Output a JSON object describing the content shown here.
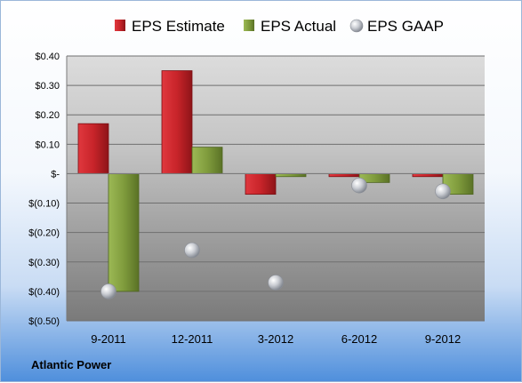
{
  "company": "Atlantic Power",
  "chart_data": {
    "type": "bar",
    "categories": [
      "9-2011",
      "12-2011",
      "3-2012",
      "6-2012",
      "9-2012"
    ],
    "series": [
      {
        "name": "EPS Estimate",
        "kind": "bar",
        "color": "#c0262c",
        "values": [
          0.17,
          0.35,
          -0.07,
          -0.01,
          -0.01
        ]
      },
      {
        "name": "EPS Actual",
        "kind": "bar",
        "color": "#7f9a3a",
        "values": [
          -0.4,
          0.09,
          -0.01,
          -0.03,
          -0.07
        ]
      },
      {
        "name": "EPS GAAP",
        "kind": "scatter",
        "color": "#b9bcc2",
        "values": [
          -0.4,
          -0.26,
          -0.37,
          -0.04,
          -0.06
        ]
      }
    ],
    "ylim": [
      -0.5,
      0.4
    ],
    "yticks": [
      0.4,
      0.3,
      0.2,
      0.1,
      0,
      -0.1,
      -0.2,
      -0.3,
      -0.4,
      -0.5
    ],
    "ytick_labels": [
      "$0.40",
      "$0.30",
      "$0.20",
      "$0.10",
      "$-",
      "$(0.10)",
      "$(0.20)",
      "$(0.30)",
      "$(0.40)",
      "$(0.50)"
    ],
    "grid": true,
    "legend_position": "top"
  }
}
